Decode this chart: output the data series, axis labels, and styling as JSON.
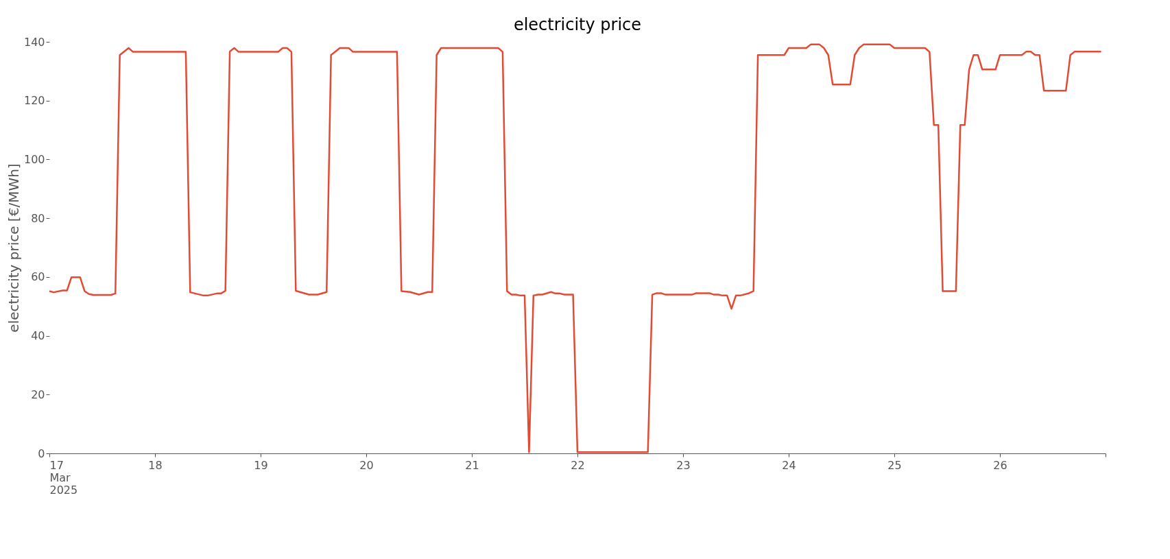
{
  "chart_data": {
    "type": "line",
    "title": "electricity price",
    "ylabel": "electricity price [€/MWh]",
    "x": [
      "2025-03-17T00:00",
      "2025-03-17T01:00",
      "2025-03-17T03:00",
      "2025-03-17T04:00",
      "2025-03-17T05:00",
      "2025-03-17T07:00",
      "2025-03-17T08:00",
      "2025-03-17T09:00",
      "2025-03-17T10:00",
      "2025-03-17T14:00",
      "2025-03-17T15:00",
      "2025-03-17T16:00",
      "2025-03-17T18:00",
      "2025-03-17T19:00",
      "2025-03-18T07:00",
      "2025-03-18T08:00",
      "2025-03-18T11:00",
      "2025-03-18T12:00",
      "2025-03-18T14:00",
      "2025-03-18T15:00",
      "2025-03-18T16:00",
      "2025-03-18T17:00",
      "2025-03-18T18:00",
      "2025-03-18T19:00",
      "2025-03-19T04:00",
      "2025-03-19T05:00",
      "2025-03-19T06:00",
      "2025-03-19T07:00",
      "2025-03-19T08:00",
      "2025-03-19T11:00",
      "2025-03-19T13:00",
      "2025-03-19T15:00",
      "2025-03-19T16:00",
      "2025-03-19T18:00",
      "2025-03-19T20:00",
      "2025-03-19T21:00",
      "2025-03-20T07:00",
      "2025-03-20T08:00",
      "2025-03-20T10:00",
      "2025-03-20T12:00",
      "2025-03-20T14:00",
      "2025-03-20T15:00",
      "2025-03-20T16:00",
      "2025-03-20T17:00",
      "2025-03-21T06:00",
      "2025-03-21T07:00",
      "2025-03-21T08:00",
      "2025-03-21T09:00",
      "2025-03-21T10:00",
      "2025-03-21T11:00",
      "2025-03-21T12:00",
      "2025-03-21T13:00",
      "2025-03-21T14:00",
      "2025-03-21T15:00",
      "2025-03-21T16:00",
      "2025-03-21T18:00",
      "2025-03-21T19:00",
      "2025-03-21T20:00",
      "2025-03-21T21:00",
      "2025-03-21T23:00",
      "2025-03-22T00:00",
      "2025-03-22T16:00",
      "2025-03-22T17:00",
      "2025-03-22T18:00",
      "2025-03-22T19:00",
      "2025-03-22T20:00",
      "2025-03-23T02:00",
      "2025-03-23T03:00",
      "2025-03-23T06:00",
      "2025-03-23T07:00",
      "2025-03-23T08:00",
      "2025-03-23T09:00",
      "2025-03-23T10:00",
      "2025-03-23T11:00",
      "2025-03-23T12:00",
      "2025-03-23T13:00",
      "2025-03-23T15:00",
      "2025-03-23T16:00",
      "2025-03-23T17:00",
      "2025-03-23T23:00",
      "2025-03-24T00:00",
      "2025-03-24T04:00",
      "2025-03-24T05:00",
      "2025-03-24T07:00",
      "2025-03-24T08:00",
      "2025-03-24T09:00",
      "2025-03-24T10:00",
      "2025-03-24T14:00",
      "2025-03-24T15:00",
      "2025-03-24T16:00",
      "2025-03-24T17:00",
      "2025-03-24T23:00",
      "2025-03-25T00:00",
      "2025-03-25T07:00",
      "2025-03-25T08:00",
      "2025-03-25T09:00",
      "2025-03-25T10:00",
      "2025-03-25T11:00",
      "2025-03-25T14:00",
      "2025-03-25T15:00",
      "2025-03-25T16:00",
      "2025-03-25T17:00",
      "2025-03-25T18:00",
      "2025-03-25T19:00",
      "2025-03-25T20:00",
      "2025-03-25T23:00",
      "2025-03-26T00:00",
      "2025-03-26T05:00",
      "2025-03-26T06:00",
      "2025-03-26T07:00",
      "2025-03-26T08:00",
      "2025-03-26T09:00",
      "2025-03-26T10:00",
      "2025-03-26T15:00",
      "2025-03-26T16:00",
      "2025-03-26T17:00",
      "2025-03-26T23:00"
    ],
    "series": [
      {
        "color": "#e24a33",
        "values": [
          55.2,
          54.8,
          55.4,
          55.4,
          59.9,
          59.9,
          55.2,
          54.2,
          53.9,
          53.9,
          54.4,
          135.5,
          137.9,
          136.6,
          136.6,
          54.8,
          53.7,
          53.7,
          54.4,
          54.4,
          55.3,
          136.7,
          137.9,
          136.6,
          136.6,
          137.9,
          137.9,
          136.6,
          55.3,
          54.0,
          54.0,
          54.9,
          135.5,
          137.9,
          137.9,
          136.6,
          136.6,
          55.2,
          54.9,
          54.0,
          54.9,
          54.9,
          135.5,
          137.9,
          137.9,
          136.6,
          55.2,
          54.0,
          54.0,
          53.7,
          53.7,
          0.4,
          53.7,
          54.0,
          54.0,
          54.9,
          54.4,
          54.4,
          54.0,
          54.0,
          0.4,
          0.4,
          54.0,
          54.5,
          54.5,
          54.0,
          54.0,
          54.5,
          54.5,
          54.0,
          54.0,
          53.7,
          53.7,
          49.2,
          53.7,
          53.7,
          54.5,
          55.2,
          135.5,
          135.5,
          137.9,
          137.9,
          139.1,
          139.1,
          137.9,
          135.5,
          125.5,
          125.5,
          135.5,
          137.9,
          139.1,
          139.1,
          137.9,
          137.9,
          136.6,
          111.7,
          111.7,
          55.2,
          55.2,
          111.7,
          111.7,
          130.6,
          135.5,
          135.5,
          130.6,
          130.6,
          135.5,
          135.5,
          136.7,
          136.7,
          135.5,
          135.5,
          123.4,
          123.4,
          135.5,
          136.7,
          136.7
        ]
      }
    ],
    "xlim": [
      "2025-03-17T00:00",
      "2025-03-27T00:00"
    ],
    "xticks": [
      {
        "value": "2025-03-17",
        "label": "17\nMar\n2025"
      },
      {
        "value": "2025-03-18",
        "label": "18"
      },
      {
        "value": "2025-03-19",
        "label": "19"
      },
      {
        "value": "2025-03-20",
        "label": "20"
      },
      {
        "value": "2025-03-21",
        "label": "21"
      },
      {
        "value": "2025-03-22",
        "label": "22"
      },
      {
        "value": "2025-03-23",
        "label": "23"
      },
      {
        "value": "2025-03-24",
        "label": "24"
      },
      {
        "value": "2025-03-25",
        "label": "25"
      },
      {
        "value": "2025-03-26",
        "label": "26"
      },
      {
        "value": "2025-03-27",
        "label": null
      }
    ],
    "ylim": [
      0,
      140
    ],
    "yticks": [
      0,
      20,
      40,
      60,
      80,
      100,
      120,
      140
    ],
    "grid": false,
    "legend": false,
    "line_style": "solid",
    "marker": "none"
  }
}
